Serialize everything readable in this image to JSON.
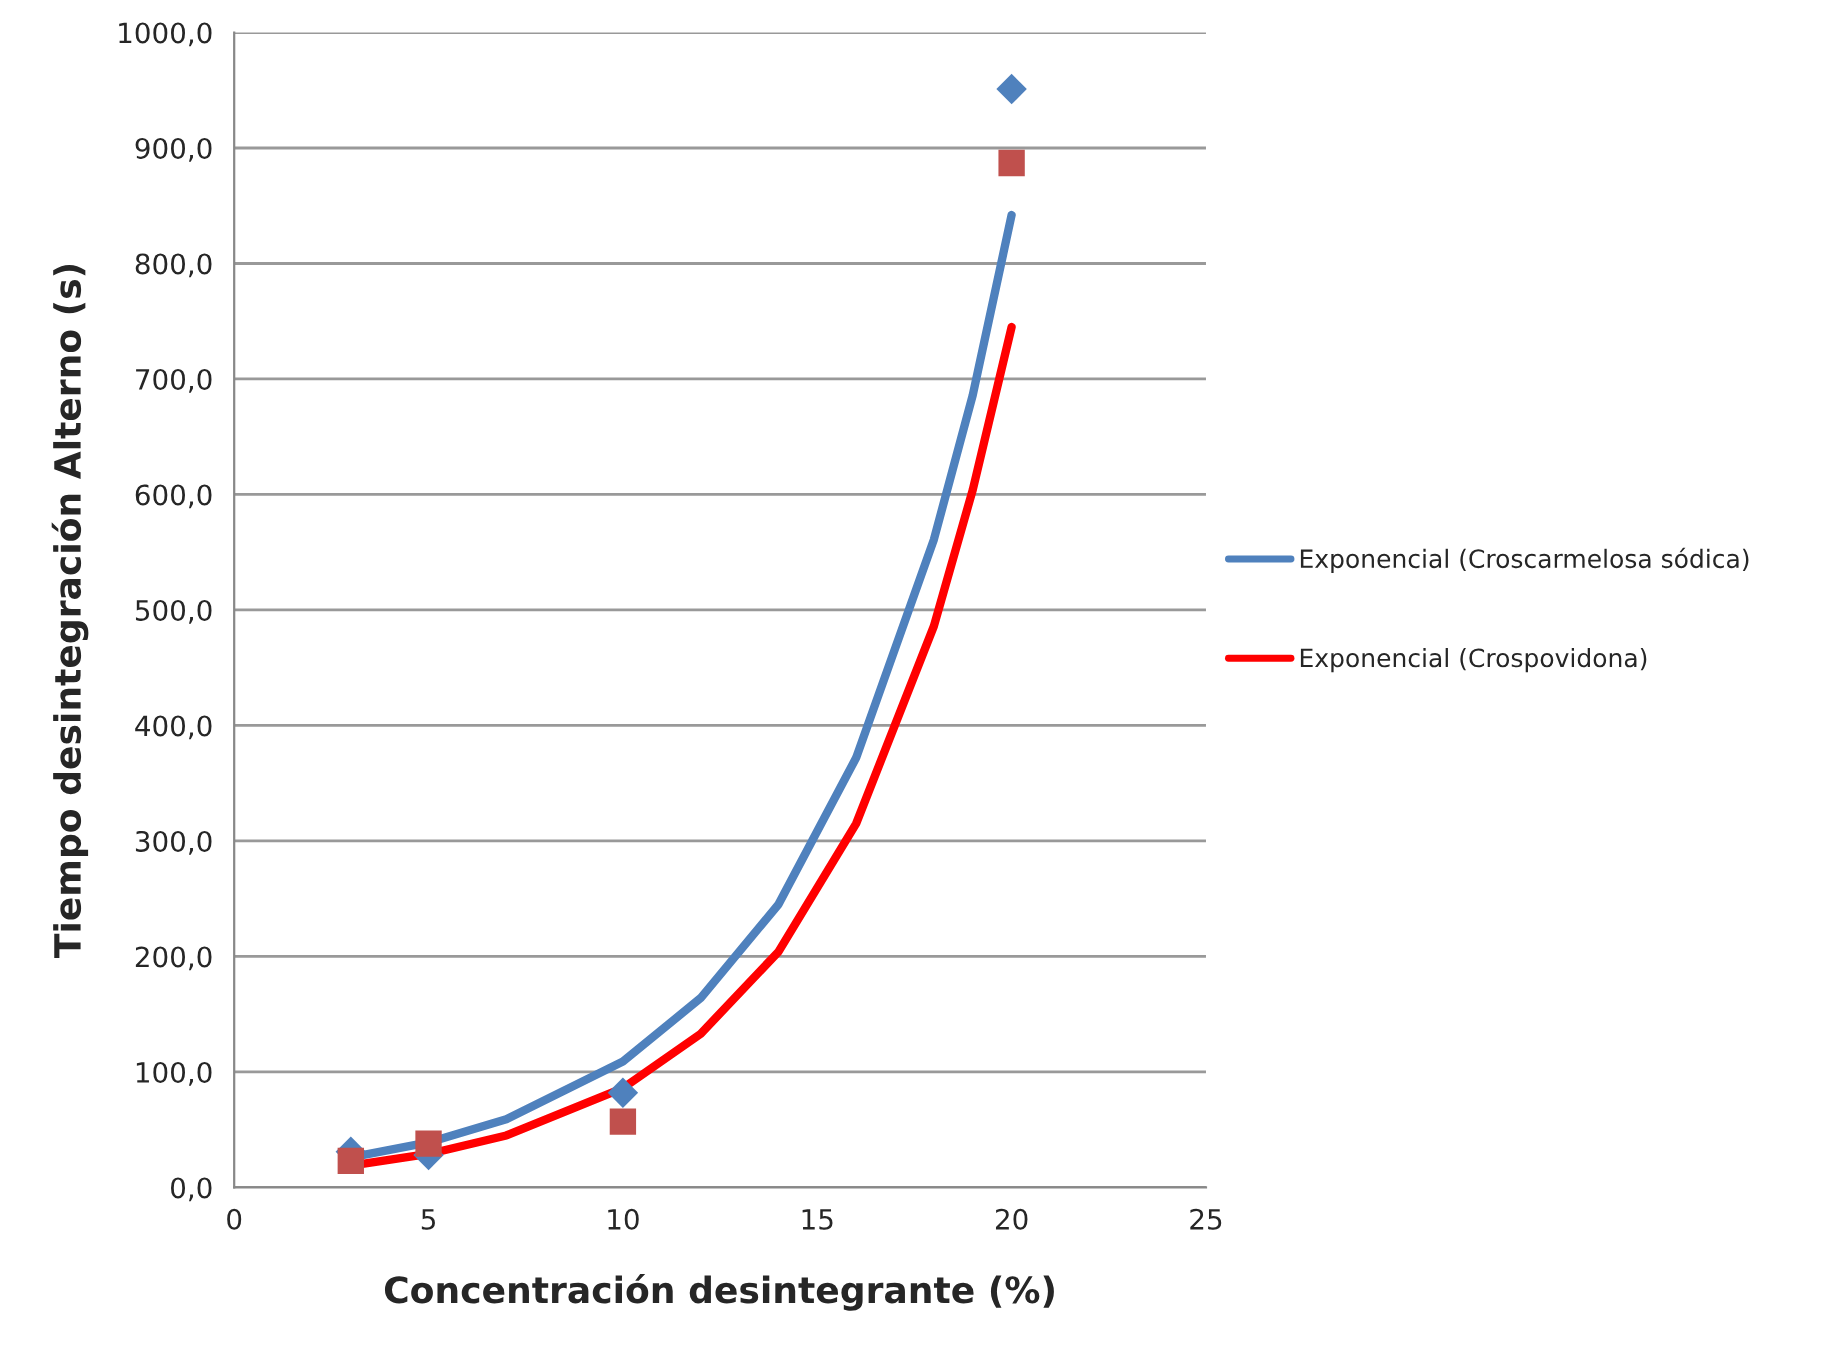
{
  "chart_data": {
    "type": "scatter",
    "xlabel": "Concentración desintegrante (%)",
    "ylabel": "Tiempo desintegración Alterno (s)",
    "xlim": [
      0,
      25
    ],
    "xticks": [
      0,
      5,
      10,
      15,
      20,
      25
    ],
    "ylim": [
      0,
      1000
    ],
    "yticks": [
      {
        "value": 0,
        "label": "0,0"
      },
      {
        "value": 100,
        "label": "100,0"
      },
      {
        "value": 200,
        "label": "200,0"
      },
      {
        "value": 300,
        "label": "300,0"
      },
      {
        "value": 400,
        "label": "400,0"
      },
      {
        "value": 500,
        "label": "500,0"
      },
      {
        "value": 600,
        "label": "600,0"
      },
      {
        "value": 700,
        "label": "700,0"
      },
      {
        "value": 800,
        "label": "800,0"
      },
      {
        "value": 900,
        "label": "900,0"
      },
      {
        "value": 1000,
        "label": "1000,0"
      }
    ],
    "grid": "y",
    "legend": "right",
    "series": [
      {
        "marker": "diamond",
        "color": "#4f81bd",
        "x": [
          3,
          5,
          10,
          20
        ],
        "values": [
          31,
          28,
          82,
          951
        ]
      },
      {
        "marker": "square",
        "color": "#c0504d",
        "x": [
          3,
          5,
          10,
          20
        ],
        "values": [
          23,
          38,
          57,
          887
        ]
      },
      {
        "type": "line",
        "name": "Exponencial (Croscarmelosa sódica)",
        "color": "#4f81bd",
        "x": [
          3,
          5,
          7,
          10,
          12,
          14,
          16,
          18,
          19,
          20
        ],
        "values": [
          26,
          39,
          59,
          109,
          164,
          245,
          372,
          561,
          686,
          842
        ]
      },
      {
        "type": "line",
        "name": "Exponencial (Crospovidona)",
        "color": "#ff0000",
        "x": [
          3,
          5,
          7,
          10,
          12,
          14,
          16,
          18,
          19,
          20
        ],
        "values": [
          19,
          29,
          45,
          86,
          133,
          204,
          315,
          486,
          604,
          745
        ]
      }
    ]
  }
}
